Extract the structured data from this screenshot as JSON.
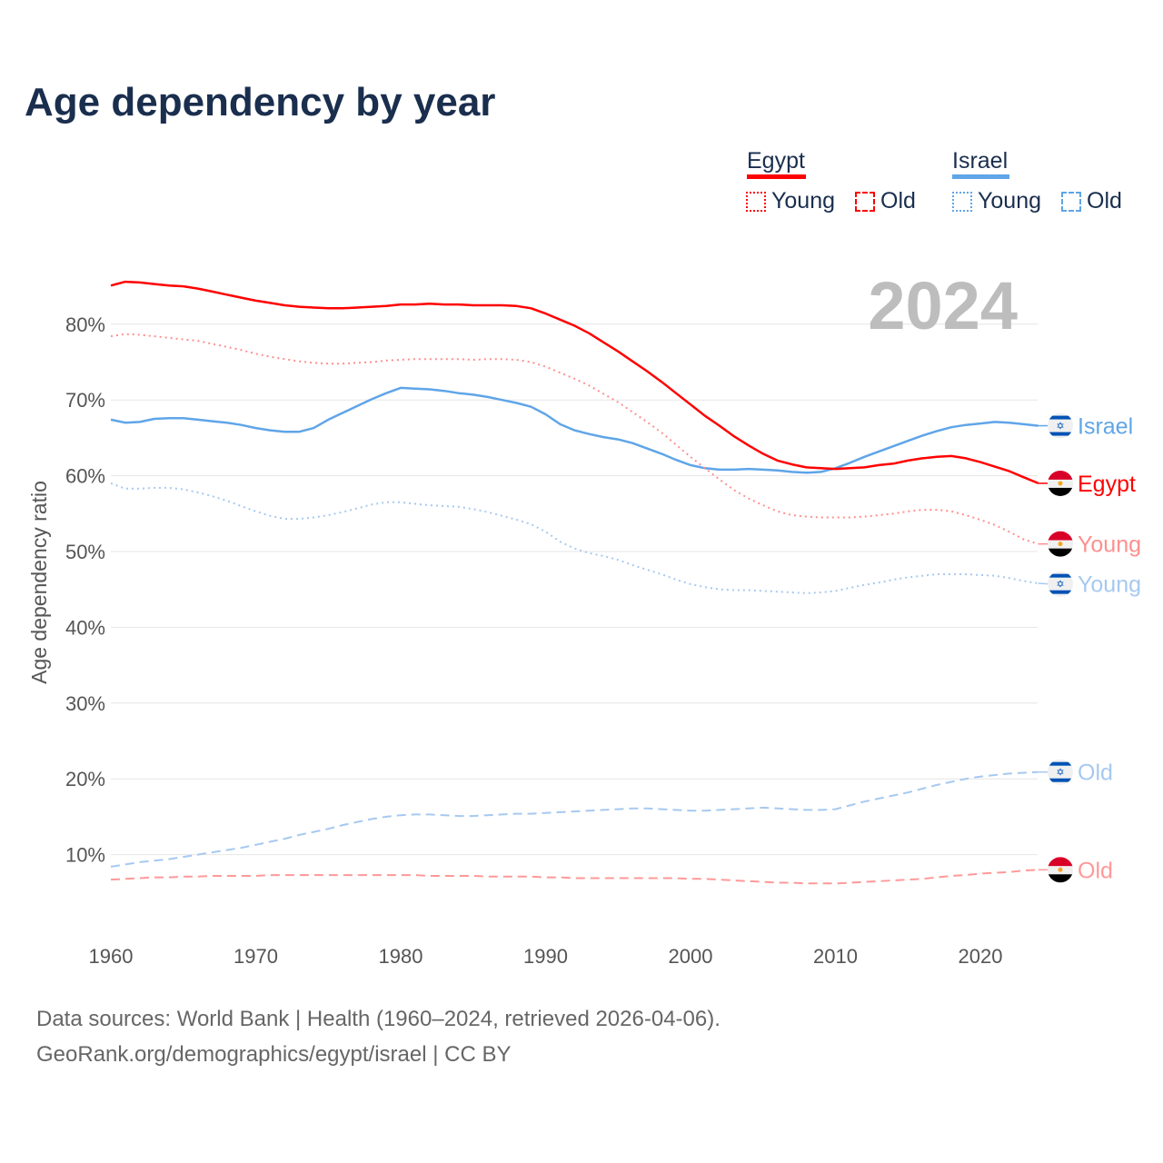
{
  "title": "Age dependency by year",
  "legend": {
    "countries": [
      {
        "name": "Egypt",
        "color": "#ff0000",
        "young_label": "Young",
        "old_label": "Old",
        "young_color": "#ff0000",
        "old_color": "#ff0000"
      },
      {
        "name": "Israel",
        "color": "#5fa5e8",
        "young_label": "Young",
        "old_label": "Old",
        "young_color": "#5fa5e8",
        "old_color": "#5fa5e8"
      }
    ]
  },
  "year_display": "2024",
  "footer": {
    "line1": "Data sources: World Bank | Health (1960–2024, retrieved 2026-04-06).",
    "line2": "GeoRank.org/demographics/egypt/israel | CC BY"
  },
  "chart_data": {
    "type": "line",
    "title": "Age dependency by year",
    "xlabel": "",
    "ylabel": "Age dependency ratio",
    "xlim": [
      1960,
      2024
    ],
    "ylim": [
      0,
      85
    ],
    "x_ticks": [
      1960,
      1970,
      1980,
      1990,
      2000,
      2010,
      2020
    ],
    "y_ticks": [
      10,
      20,
      30,
      40,
      50,
      60,
      70,
      80
    ],
    "y_tick_labels": [
      "10%",
      "20%",
      "30%",
      "40%",
      "50%",
      "60%",
      "70%",
      "80%"
    ],
    "grid": true,
    "x_start": 1960,
    "series": [
      {
        "name": "Israel",
        "end_label": "Israel",
        "country": "israel",
        "style": "solid",
        "color": "#5fa5e8",
        "values": [
          67.4,
          67.0,
          67.1,
          67.5,
          67.6,
          67.6,
          67.4,
          67.2,
          67.0,
          66.7,
          66.3,
          66.0,
          65.8,
          65.8,
          66.3,
          67.4,
          68.3,
          69.2,
          70.1,
          70.9,
          71.6,
          71.5,
          71.4,
          71.2,
          70.9,
          70.7,
          70.4,
          70.0,
          69.6,
          69.1,
          68.1,
          66.8,
          66.0,
          65.5,
          65.1,
          64.8,
          64.3,
          63.6,
          62.9,
          62.1,
          61.4,
          61.0,
          60.8,
          60.8,
          60.9,
          60.8,
          60.7,
          60.5,
          60.4,
          60.5,
          61.0,
          61.7,
          62.5,
          63.2,
          63.9,
          64.6,
          65.3,
          65.9,
          66.4,
          66.7,
          66.9,
          67.1,
          67.0,
          66.8,
          66.6
        ]
      },
      {
        "name": "Egypt",
        "end_label": "Egypt",
        "country": "egypt",
        "style": "solid",
        "color": "#ff0000",
        "values": [
          85.1,
          85.6,
          85.5,
          85.3,
          85.1,
          85.0,
          84.7,
          84.3,
          83.9,
          83.5,
          83.1,
          82.8,
          82.5,
          82.3,
          82.2,
          82.1,
          82.1,
          82.2,
          82.3,
          82.4,
          82.6,
          82.6,
          82.7,
          82.6,
          82.6,
          82.5,
          82.5,
          82.5,
          82.4,
          82.1,
          81.4,
          80.6,
          79.8,
          78.8,
          77.6,
          76.4,
          75.1,
          73.8,
          72.4,
          70.9,
          69.4,
          67.9,
          66.6,
          65.2,
          64.0,
          62.9,
          62.0,
          61.5,
          61.1,
          61.0,
          60.9,
          61.0,
          61.1,
          61.4,
          61.6,
          62.0,
          62.3,
          62.5,
          62.6,
          62.3,
          61.8,
          61.2,
          60.6,
          59.8,
          59.0
        ]
      },
      {
        "name": "Egypt Young",
        "end_label": "Young",
        "country": "egypt",
        "style": "dotted",
        "color": "#ff8f8f",
        "values": [
          78.4,
          78.7,
          78.6,
          78.4,
          78.2,
          78.0,
          77.8,
          77.4,
          77.0,
          76.6,
          76.1,
          75.7,
          75.4,
          75.1,
          74.9,
          74.8,
          74.8,
          74.9,
          75.0,
          75.2,
          75.3,
          75.4,
          75.4,
          75.4,
          75.4,
          75.3,
          75.4,
          75.4,
          75.3,
          75.0,
          74.4,
          73.6,
          72.8,
          71.9,
          70.8,
          69.7,
          68.4,
          67.1,
          65.7,
          64.1,
          62.5,
          61.0,
          59.5,
          58.1,
          57.0,
          56.1,
          55.3,
          54.8,
          54.6,
          54.5,
          54.5,
          54.5,
          54.6,
          54.8,
          55.0,
          55.3,
          55.5,
          55.5,
          55.3,
          54.8,
          54.2,
          53.5,
          52.6,
          51.6,
          51.0
        ]
      },
      {
        "name": "Israel Young",
        "end_label": "Young",
        "country": "israel",
        "style": "dotted",
        "color": "#a6c9f0",
        "values": [
          59.0,
          58.3,
          58.3,
          58.4,
          58.4,
          58.2,
          57.8,
          57.3,
          56.7,
          56.0,
          55.3,
          54.7,
          54.3,
          54.3,
          54.5,
          54.8,
          55.2,
          55.7,
          56.2,
          56.5,
          56.5,
          56.3,
          56.1,
          56.0,
          55.9,
          55.6,
          55.2,
          54.7,
          54.2,
          53.6,
          52.6,
          51.3,
          50.4,
          49.8,
          49.4,
          48.9,
          48.2,
          47.6,
          47.0,
          46.3,
          45.7,
          45.3,
          45.0,
          44.9,
          44.9,
          44.8,
          44.7,
          44.6,
          44.5,
          44.6,
          44.8,
          45.2,
          45.6,
          45.9,
          46.3,
          46.6,
          46.8,
          47.0,
          47.0,
          47.0,
          46.9,
          46.8,
          46.5,
          46.1,
          45.8
        ]
      },
      {
        "name": "Israel Old",
        "end_label": "Old",
        "country": "israel",
        "style": "dashed",
        "color": "#a6c9f0",
        "values": [
          8.4,
          8.7,
          9.0,
          9.2,
          9.4,
          9.7,
          10.0,
          10.3,
          10.6,
          10.9,
          11.3,
          11.7,
          12.1,
          12.6,
          13.0,
          13.4,
          13.9,
          14.3,
          14.7,
          15.0,
          15.2,
          15.3,
          15.3,
          15.2,
          15.1,
          15.1,
          15.2,
          15.3,
          15.4,
          15.4,
          15.5,
          15.6,
          15.7,
          15.8,
          15.9,
          16.0,
          16.1,
          16.1,
          16.0,
          15.9,
          15.8,
          15.8,
          15.9,
          16.0,
          16.1,
          16.2,
          16.1,
          16.0,
          15.9,
          15.9,
          16.0,
          16.5,
          17.0,
          17.4,
          17.8,
          18.2,
          18.7,
          19.2,
          19.6,
          20.0,
          20.3,
          20.5,
          20.7,
          20.8,
          20.9
        ]
      },
      {
        "name": "Egypt Old",
        "end_label": "Old",
        "country": "egypt",
        "style": "dashed",
        "color": "#ff9999",
        "values": [
          6.7,
          6.8,
          6.9,
          7.0,
          7.0,
          7.1,
          7.1,
          7.2,
          7.2,
          7.2,
          7.2,
          7.3,
          7.3,
          7.3,
          7.3,
          7.3,
          7.3,
          7.3,
          7.3,
          7.3,
          7.3,
          7.3,
          7.2,
          7.2,
          7.2,
          7.2,
          7.1,
          7.1,
          7.1,
          7.1,
          7.0,
          7.0,
          6.9,
          6.9,
          6.9,
          6.9,
          6.9,
          6.9,
          6.9,
          6.9,
          6.8,
          6.8,
          6.7,
          6.6,
          6.5,
          6.4,
          6.3,
          6.3,
          6.2,
          6.2,
          6.2,
          6.3,
          6.4,
          6.5,
          6.6,
          6.7,
          6.8,
          7.0,
          7.2,
          7.3,
          7.5,
          7.6,
          7.7,
          7.9,
          8.0
        ]
      }
    ]
  }
}
